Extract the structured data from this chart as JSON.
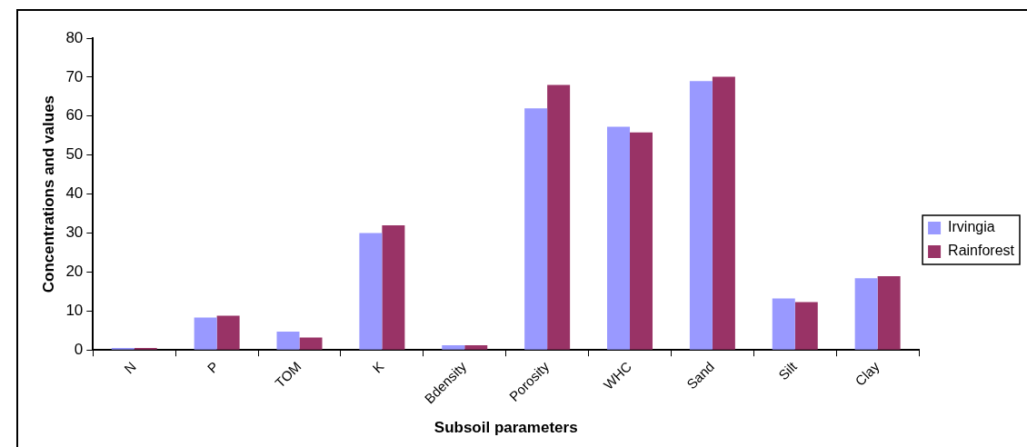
{
  "chart_data": {
    "type": "bar",
    "xlabel": "Subsoil parameters",
    "ylabel": "Concentrations and values",
    "categories": [
      "N",
      "P",
      "TOM",
      "K",
      "Bdensity",
      "Porosity",
      "WHC",
      "Sand",
      "Silt",
      "Clay"
    ],
    "series": [
      {
        "name": "Irvingia",
        "color": "#9999ff",
        "values": [
          0.5,
          8.3,
          4.7,
          30,
          1.2,
          62,
          57.3,
          69,
          13.2,
          18.4
        ]
      },
      {
        "name": "Rainforest",
        "color": "#993366",
        "values": [
          0.5,
          8.8,
          3.2,
          32,
          1.2,
          68,
          55.8,
          70.1,
          12.3,
          18.9
        ]
      }
    ],
    "ylim": [
      0,
      80
    ],
    "yticks": [
      0,
      10,
      20,
      30,
      40,
      50,
      60,
      70,
      80
    ],
    "grid": false,
    "legend": "right"
  }
}
